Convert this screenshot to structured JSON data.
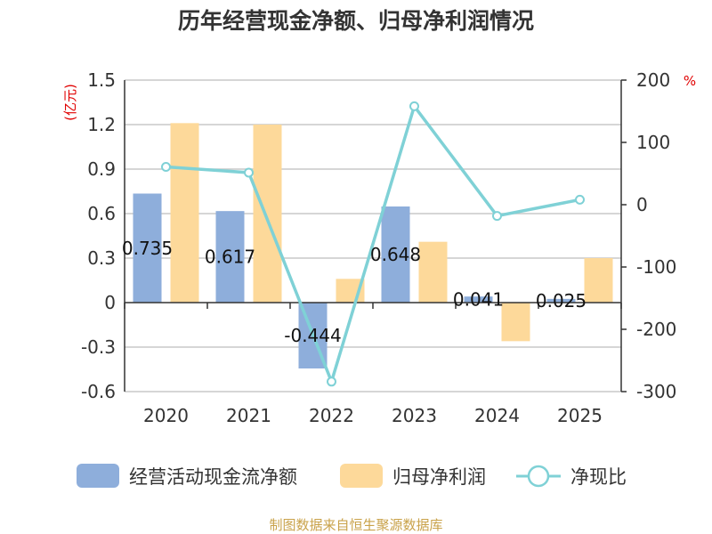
{
  "chart_data": {
    "type": "bar+line",
    "title": "历年经营现金净额、归母净利润情况",
    "categories": [
      "2020",
      "2021",
      "2022",
      "2023",
      "2024",
      "2025"
    ],
    "left_axis": {
      "unit": "(亿元)",
      "range": [
        -0.6,
        1.5
      ],
      "ticks": [
        "-0.6",
        "-0.3",
        "0",
        "0.3",
        "0.6",
        "0.9",
        "1.2",
        "1.5"
      ]
    },
    "right_axis": {
      "unit": "%",
      "range": [
        -300,
        200
      ],
      "ticks": [
        "-300",
        "-200",
        "-100",
        "0",
        "100",
        "200"
      ]
    },
    "series": [
      {
        "name": "经营活动现金流净额",
        "kind": "bar",
        "color": "#8eaedb",
        "values": [
          0.735,
          0.617,
          -0.444,
          0.648,
          0.041,
          0.025
        ],
        "labels": [
          "0.735",
          "0.617",
          "-0.444",
          "0.648",
          "0.041",
          "0.025"
        ]
      },
      {
        "name": "归母净利润",
        "kind": "bar",
        "color": "#fdd99a",
        "values": [
          1.21,
          1.2,
          0.16,
          0.41,
          -0.26,
          0.3
        ]
      },
      {
        "name": "净现比",
        "kind": "line",
        "color": "#7fd1d6",
        "values": [
          60.7,
          51.5,
          -284,
          158,
          -18,
          8
        ]
      }
    ],
    "source": "制图数据来自恒生聚源数据库"
  }
}
